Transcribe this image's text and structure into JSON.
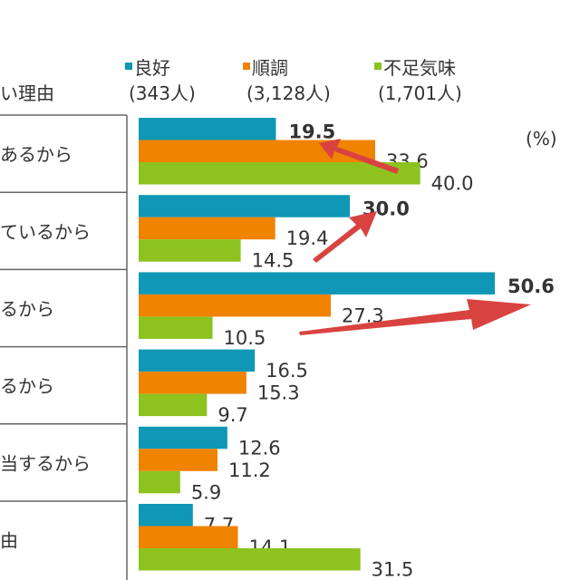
{
  "chart_data": {
    "type": "bar",
    "orientation": "horizontal",
    "unit_label": "(%)",
    "row_header": "い理由",
    "categories": [
      "あるから",
      "ているから",
      "るから",
      "るから",
      "当するから",
      "由"
    ],
    "series": [
      {
        "name": "良好",
        "count_label": "(343人)",
        "color": "#0f97b5",
        "values": [
          19.5,
          30.0,
          50.6,
          16.5,
          12.6,
          7.7
        ]
      },
      {
        "name": "順調",
        "count_label": "(3,128人)",
        "color": "#f08300",
        "values": [
          33.6,
          19.4,
          27.3,
          15.3,
          11.2,
          14.1
        ]
      },
      {
        "name": "不足気味",
        "count_label": "(1,701人)",
        "color": "#8dc21f",
        "values": [
          40.0,
          14.5,
          10.5,
          9.7,
          5.9,
          31.5
        ]
      }
    ],
    "highlighted_values_color": "#1a9bb5",
    "highlighted": [
      [
        0,
        0
      ],
      [
        1,
        0
      ],
      [
        2,
        0
      ]
    ],
    "annotation_arrow_color": "#d9433f",
    "grid": false,
    "legend_position": "top"
  }
}
